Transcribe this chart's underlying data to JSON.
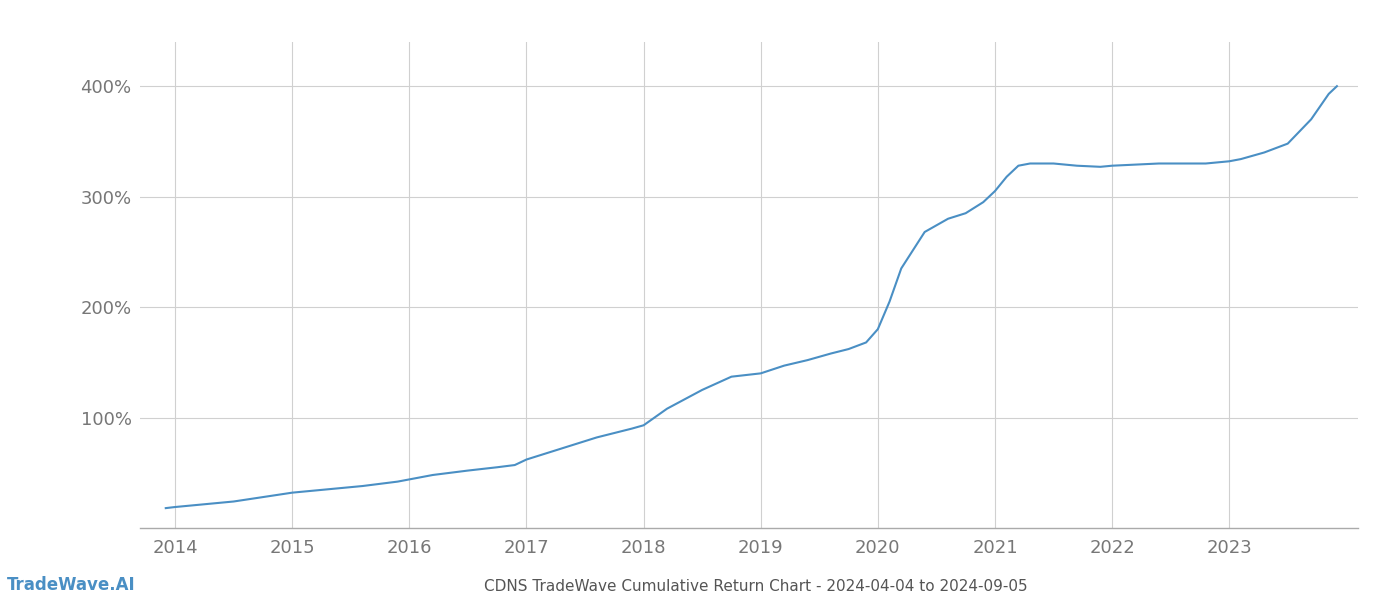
{
  "title": "CDNS TradeWave Cumulative Return Chart - 2024-04-04 to 2024-09-05",
  "watermark": "TradeWave.AI",
  "line_color": "#4a8fc4",
  "background_color": "#ffffff",
  "grid_color": "#d0d0d0",
  "x_years": [
    2014,
    2015,
    2016,
    2017,
    2018,
    2019,
    2020,
    2021,
    2022,
    2023
  ],
  "data_points": [
    [
      2013.92,
      18
    ],
    [
      2014.0,
      19
    ],
    [
      2014.2,
      21
    ],
    [
      2014.5,
      24
    ],
    [
      2014.75,
      28
    ],
    [
      2015.0,
      32
    ],
    [
      2015.3,
      35
    ],
    [
      2015.6,
      38
    ],
    [
      2015.9,
      42
    ],
    [
      2016.0,
      44
    ],
    [
      2016.2,
      48
    ],
    [
      2016.5,
      52
    ],
    [
      2016.75,
      55
    ],
    [
      2016.9,
      57
    ],
    [
      2017.0,
      62
    ],
    [
      2017.3,
      72
    ],
    [
      2017.6,
      82
    ],
    [
      2017.9,
      90
    ],
    [
      2018.0,
      93
    ],
    [
      2018.2,
      108
    ],
    [
      2018.5,
      125
    ],
    [
      2018.75,
      137
    ],
    [
      2019.0,
      140
    ],
    [
      2019.2,
      147
    ],
    [
      2019.4,
      152
    ],
    [
      2019.6,
      158
    ],
    [
      2019.75,
      162
    ],
    [
      2019.9,
      168
    ],
    [
      2020.0,
      180
    ],
    [
      2020.1,
      205
    ],
    [
      2020.2,
      235
    ],
    [
      2020.4,
      268
    ],
    [
      2020.6,
      280
    ],
    [
      2020.75,
      285
    ],
    [
      2020.9,
      295
    ],
    [
      2021.0,
      305
    ],
    [
      2021.1,
      318
    ],
    [
      2021.2,
      328
    ],
    [
      2021.3,
      330
    ],
    [
      2021.5,
      330
    ],
    [
      2021.7,
      328
    ],
    [
      2021.9,
      327
    ],
    [
      2022.0,
      328
    ],
    [
      2022.2,
      329
    ],
    [
      2022.4,
      330
    ],
    [
      2022.6,
      330
    ],
    [
      2022.8,
      330
    ],
    [
      2022.9,
      331
    ],
    [
      2023.0,
      332
    ],
    [
      2023.1,
      334
    ],
    [
      2023.3,
      340
    ],
    [
      2023.5,
      348
    ],
    [
      2023.7,
      370
    ],
    [
      2023.85,
      393
    ],
    [
      2023.92,
      400
    ]
  ],
  "yticks": [
    100,
    200,
    300,
    400
  ],
  "ylim": [
    0,
    440
  ],
  "xlim": [
    2013.7,
    2024.1
  ],
  "title_fontsize": 11,
  "watermark_fontsize": 12,
  "tick_fontsize": 13,
  "axis_label_color": "#777777",
  "title_color": "#555555",
  "watermark_color": "#4a8fc4"
}
